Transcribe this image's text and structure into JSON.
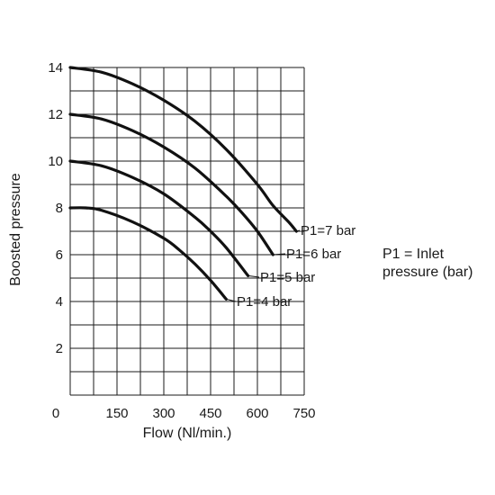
{
  "chart_data": {
    "type": "line",
    "xlabel": "Flow (Nl/min.)",
    "ylabel": "Boosted pressure",
    "xlim": [
      0,
      750
    ],
    "ylim": [
      0,
      14
    ],
    "x_ticks": [
      "0",
      "150",
      "300",
      "450",
      "600",
      "750"
    ],
    "y_ticks": [
      "2",
      "4",
      "6",
      "8",
      "10",
      "12",
      "14"
    ],
    "grid": true,
    "series": [
      {
        "name": "P1=7 bar",
        "x": [
          0,
          100,
          200,
          300,
          400,
          500,
          600,
          650,
          700,
          725
        ],
        "y": [
          14,
          13.8,
          13.3,
          12.6,
          11.7,
          10.5,
          9.0,
          8.1,
          7.4,
          7.0
        ]
      },
      {
        "name": "P1=6 bar",
        "x": [
          0,
          100,
          200,
          300,
          400,
          500,
          550,
          600,
          650
        ],
        "y": [
          12,
          11.8,
          11.3,
          10.6,
          9.7,
          8.5,
          7.8,
          7.0,
          6.0
        ]
      },
      {
        "name": "P1=5 bar",
        "x": [
          0,
          100,
          200,
          300,
          400,
          450,
          500,
          570
        ],
        "y": [
          10,
          9.8,
          9.3,
          8.6,
          7.6,
          7.0,
          6.3,
          5.1
        ]
      },
      {
        "name": "P1=4 bar",
        "x": [
          0,
          50,
          100,
          200,
          300,
          350,
          400,
          450,
          500
        ],
        "y": [
          8,
          8.0,
          7.9,
          7.4,
          6.7,
          6.2,
          5.6,
          4.9,
          4.1
        ]
      }
    ],
    "note": {
      "line1": "P1 = Inlet",
      "line2": "pressure (bar)"
    }
  }
}
